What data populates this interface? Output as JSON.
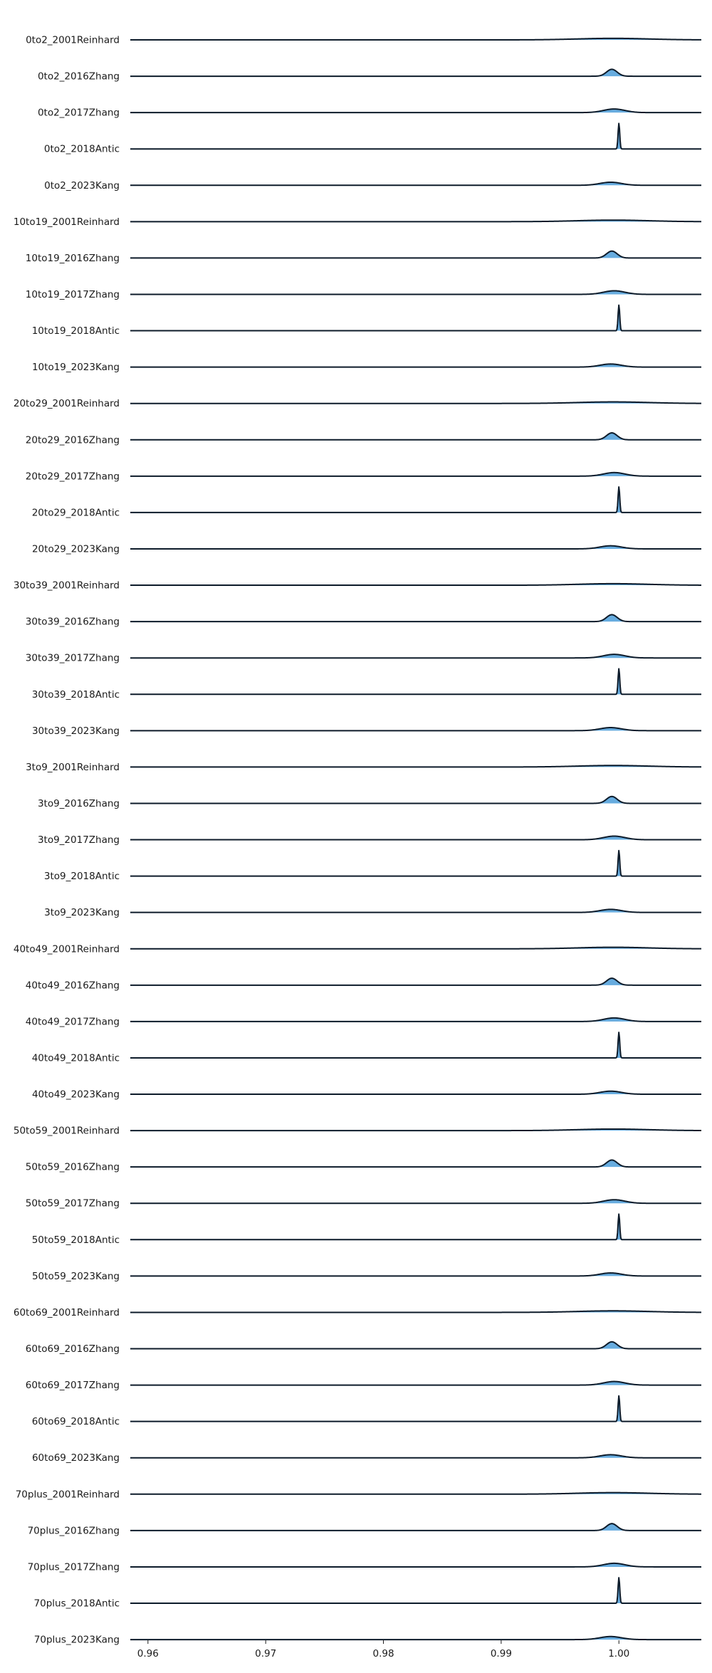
{
  "chart_data": {
    "type": "ridgeline",
    "title": "",
    "xlabel": "",
    "ylabel": "",
    "xlim": [
      0.9585,
      1.007
    ],
    "x_ticks": [
      0.96,
      0.97,
      0.98,
      0.99,
      1.0
    ],
    "x_tick_labels": [
      "0.96",
      "0.97",
      "0.98",
      "0.99",
      "1.00"
    ],
    "grid": false,
    "legend": "none",
    "colors": {
      "fill": "#4c9ed9",
      "line": "#0d1b2a"
    },
    "studies": {
      "2001Reinhard": {
        "mean": 0.9995,
        "sd": 0.003,
        "rel_height": 0.06
      },
      "2016Zhang": {
        "mean": 0.9994,
        "sd": 0.00045,
        "rel_height": 0.27
      },
      "2017Zhang": {
        "mean": 0.9996,
        "sd": 0.0009,
        "rel_height": 0.14
      },
      "2018Antic": {
        "mean": 1.0,
        "sd": 7e-05,
        "rel_height": 1.0
      },
      "2023Kang": {
        "mean": 0.9993,
        "sd": 0.0009,
        "rel_height": 0.12
      }
    },
    "series": [
      {
        "name": "0to2_2001Reinhard",
        "study": "2001Reinhard"
      },
      {
        "name": "0to2_2016Zhang",
        "study": "2016Zhang"
      },
      {
        "name": "0to2_2017Zhang",
        "study": "2017Zhang"
      },
      {
        "name": "0to2_2018Antic",
        "study": "2018Antic"
      },
      {
        "name": "0to2_2023Kang",
        "study": "2023Kang"
      },
      {
        "name": "10to19_2001Reinhard",
        "study": "2001Reinhard"
      },
      {
        "name": "10to19_2016Zhang",
        "study": "2016Zhang"
      },
      {
        "name": "10to19_2017Zhang",
        "study": "2017Zhang"
      },
      {
        "name": "10to19_2018Antic",
        "study": "2018Antic"
      },
      {
        "name": "10to19_2023Kang",
        "study": "2023Kang"
      },
      {
        "name": "20to29_2001Reinhard",
        "study": "2001Reinhard"
      },
      {
        "name": "20to29_2016Zhang",
        "study": "2016Zhang"
      },
      {
        "name": "20to29_2017Zhang",
        "study": "2017Zhang"
      },
      {
        "name": "20to29_2018Antic",
        "study": "2018Antic"
      },
      {
        "name": "20to29_2023Kang",
        "study": "2023Kang"
      },
      {
        "name": "30to39_2001Reinhard",
        "study": "2001Reinhard"
      },
      {
        "name": "30to39_2016Zhang",
        "study": "2016Zhang"
      },
      {
        "name": "30to39_2017Zhang",
        "study": "2017Zhang"
      },
      {
        "name": "30to39_2018Antic",
        "study": "2018Antic"
      },
      {
        "name": "30to39_2023Kang",
        "study": "2023Kang"
      },
      {
        "name": "3to9_2001Reinhard",
        "study": "2001Reinhard"
      },
      {
        "name": "3to9_2016Zhang",
        "study": "2016Zhang"
      },
      {
        "name": "3to9_2017Zhang",
        "study": "2017Zhang"
      },
      {
        "name": "3to9_2018Antic",
        "study": "2018Antic"
      },
      {
        "name": "3to9_2023Kang",
        "study": "2023Kang"
      },
      {
        "name": "40to49_2001Reinhard",
        "study": "2001Reinhard"
      },
      {
        "name": "40to49_2016Zhang",
        "study": "2016Zhang"
      },
      {
        "name": "40to49_2017Zhang",
        "study": "2017Zhang"
      },
      {
        "name": "40to49_2018Antic",
        "study": "2018Antic"
      },
      {
        "name": "40to49_2023Kang",
        "study": "2023Kang"
      },
      {
        "name": "50to59_2001Reinhard",
        "study": "2001Reinhard"
      },
      {
        "name": "50to59_2016Zhang",
        "study": "2016Zhang"
      },
      {
        "name": "50to59_2017Zhang",
        "study": "2017Zhang"
      },
      {
        "name": "50to59_2018Antic",
        "study": "2018Antic"
      },
      {
        "name": "50to59_2023Kang",
        "study": "2023Kang"
      },
      {
        "name": "60to69_2001Reinhard",
        "study": "2001Reinhard"
      },
      {
        "name": "60to69_2016Zhang",
        "study": "2016Zhang"
      },
      {
        "name": "60to69_2017Zhang",
        "study": "2017Zhang"
      },
      {
        "name": "60to69_2018Antic",
        "study": "2018Antic"
      },
      {
        "name": "60to69_2023Kang",
        "study": "2023Kang"
      },
      {
        "name": "70plus_2001Reinhard",
        "study": "2001Reinhard"
      },
      {
        "name": "70plus_2016Zhang",
        "study": "2016Zhang"
      },
      {
        "name": "70plus_2017Zhang",
        "study": "2017Zhang"
      },
      {
        "name": "70plus_2018Antic",
        "study": "2018Antic"
      },
      {
        "name": "70plus_2023Kang",
        "study": "2023Kang"
      }
    ]
  }
}
